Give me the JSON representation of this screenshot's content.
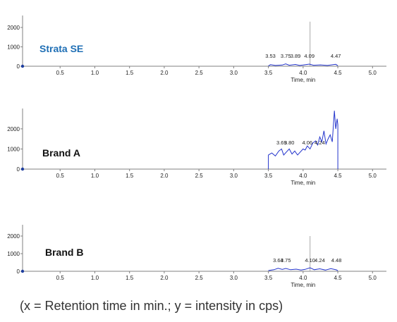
{
  "colors": {
    "trace": "#2233cc",
    "axis": "#808080",
    "label_blue": "#1f6fb5",
    "label_dark": "#111111",
    "marker": "#1f3f9f",
    "spike": "#aaaaaa"
  },
  "caption": "(x = Retention time in min.; y = intensity in cps)",
  "chart_data": [
    {
      "type": "line",
      "label": "Strata SE",
      "label_color": "#1f6fb5",
      "x_ticks": [
        "0.5",
        "1.0",
        "1.5",
        "2.0",
        "2.5",
        "3.0",
        "3.5",
        "4.0",
        "4.5",
        "5.0"
      ],
      "y_ticks": [
        "2000",
        "1000",
        "0"
      ],
      "xlabel": "Time, min",
      "xlim": [
        0,
        5.2
      ],
      "ylim": [
        0,
        2400
      ],
      "peak_labels": [
        {
          "x": 3.53,
          "text": "3.53"
        },
        {
          "x": 3.75,
          "text": "3.75"
        },
        {
          "x": 3.89,
          "text": "3.89"
        },
        {
          "x": 4.09,
          "text": "4.09"
        },
        {
          "x": 4.47,
          "text": "4.47"
        }
      ],
      "spike": {
        "x": 4.1,
        "y": 2300
      },
      "series": [
        {
          "x": [
            3.5,
            3.53,
            3.6,
            3.7,
            3.75,
            3.8,
            3.89,
            3.95,
            4.0,
            4.09,
            4.15,
            4.25,
            4.35,
            4.47,
            4.5
          ],
          "y": [
            20,
            80,
            40,
            60,
            120,
            50,
            90,
            40,
            60,
            110,
            50,
            70,
            40,
            100,
            30
          ]
        }
      ]
    },
    {
      "type": "line",
      "label": "Brand A",
      "label_color": "#111111",
      "x_ticks": [
        "0.5",
        "1.0",
        "1.5",
        "2.0",
        "2.5",
        "3.0",
        "3.5",
        "4.0",
        "4.5",
        "5.0"
      ],
      "y_ticks": [
        "2000",
        "1000",
        "0"
      ],
      "xlabel": "Time, min",
      "xlim": [
        0,
        5.2
      ],
      "ylim": [
        0,
        2800
      ],
      "peak_labels": [
        {
          "x": 3.69,
          "text": "3.69"
        },
        {
          "x": 3.8,
          "text": "3.80"
        },
        {
          "x": 4.06,
          "text": "4.06"
        },
        {
          "x": 4.24,
          "text": "4.24"
        }
      ],
      "series": [
        {
          "x": [
            3.5,
            3.5,
            3.55,
            3.6,
            3.65,
            3.69,
            3.72,
            3.76,
            3.8,
            3.84,
            3.88,
            3.92,
            3.96,
            4.0,
            4.03,
            4.06,
            4.1,
            4.14,
            4.18,
            4.21,
            4.24,
            4.27,
            4.3,
            4.33,
            4.36,
            4.39,
            4.42,
            4.45,
            4.47,
            4.49,
            4.5,
            4.5
          ],
          "y": [
            0,
            700,
            800,
            650,
            900,
            1000,
            700,
            850,
            1000,
            750,
            900,
            700,
            850,
            1000,
            950,
            1150,
            1000,
            1300,
            1400,
            1200,
            1600,
            1350,
            1900,
            1250,
            1500,
            1700,
            1350,
            2900,
            2000,
            2500,
            2200,
            0
          ]
        }
      ]
    },
    {
      "type": "line",
      "label": "Brand B",
      "label_color": "#111111",
      "x_ticks": [
        "0.5",
        "1.0",
        "1.5",
        "2.0",
        "2.5",
        "3.0",
        "3.5",
        "4.0",
        "4.5",
        "5.0"
      ],
      "y_ticks": [
        "2000",
        "1000",
        "0"
      ],
      "xlabel": "Time, min",
      "xlim": [
        0,
        5.2
      ],
      "ylim": [
        0,
        2400
      ],
      "peak_labels": [
        {
          "x": 3.64,
          "text": "3.64"
        },
        {
          "x": 3.75,
          "text": "3.75"
        },
        {
          "x": 4.1,
          "text": "4.10"
        },
        {
          "x": 4.24,
          "text": "4.24"
        },
        {
          "x": 4.48,
          "text": "4.48"
        }
      ],
      "spike": {
        "x": 4.1,
        "y": 2000
      },
      "series": [
        {
          "x": [
            3.5,
            3.58,
            3.64,
            3.7,
            3.75,
            3.82,
            3.9,
            3.97,
            4.03,
            4.1,
            4.16,
            4.24,
            4.32,
            4.4,
            4.48,
            4.5
          ],
          "y": [
            40,
            90,
            170,
            110,
            160,
            90,
            120,
            70,
            110,
            200,
            90,
            140,
            70,
            150,
            80,
            30
          ]
        }
      ]
    }
  ]
}
